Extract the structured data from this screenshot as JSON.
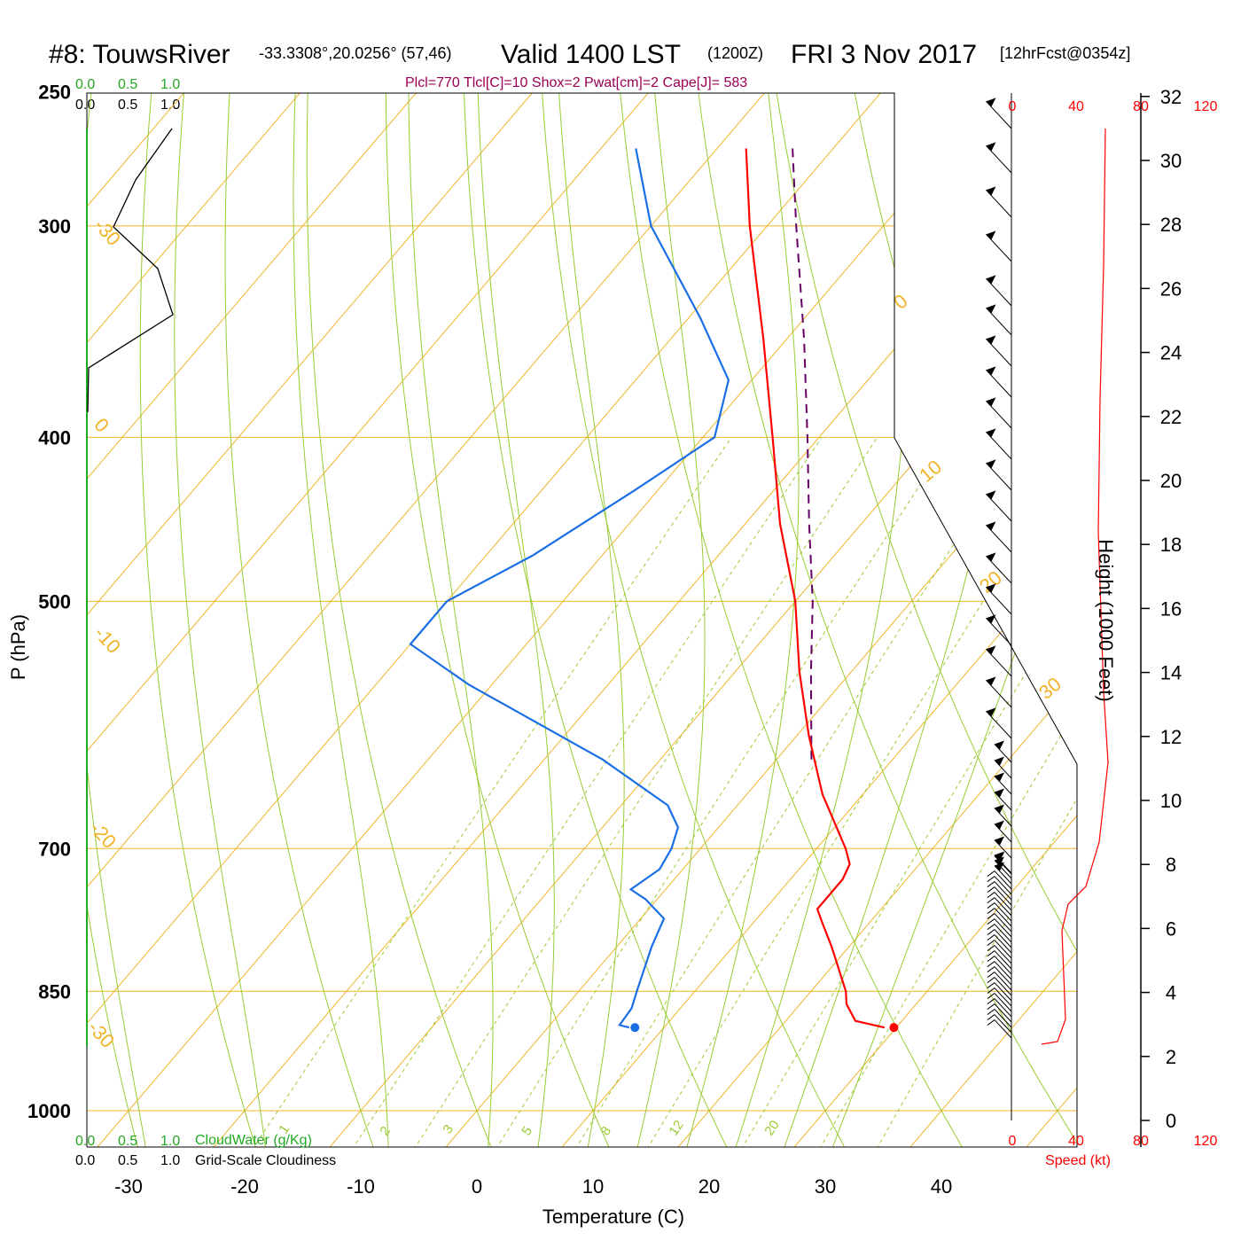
{
  "title": {
    "station": "#8: TouwsRiver",
    "coords": "-33.3308°,20.0256° (57,46)",
    "valid": "Valid 1400 LST",
    "zulu": "(1200Z)",
    "date": "FRI 3 Nov 2017",
    "forecast": "[12hrFcst@0354z]"
  },
  "params_line": "Plcl=770 Tlcl[C]=10 Shox=2 Pwat[cm]=2 Cape[J]= 583",
  "cloud_scale_top": {
    "green": [
      "0.0",
      "0.5",
      "1.0"
    ],
    "black": [
      "0.0",
      "0.5",
      "1.0"
    ]
  },
  "cloud_scale_bottom": {
    "green": [
      "0.0",
      "0.5",
      "1.0"
    ],
    "green_label": "CloudWater (g/Kg)",
    "black": [
      "0.0",
      "0.5",
      "1.0"
    ],
    "black_label": "Grid-Scale Cloudiness"
  },
  "speed_scale": {
    "ticks": [
      "0",
      "40",
      "80",
      "120"
    ],
    "label": "Speed (kt)"
  },
  "colors": {
    "isotherm": "#f0b429",
    "dry_adiabat": "#99cc33",
    "mixing_ratio": "#99cc33",
    "temperature": "#ff0000",
    "dewpoint": "#1a6ee6",
    "parcel": "#660066",
    "cloud_water": "#22aa22",
    "speed": "#ff0000"
  },
  "chart_data": {
    "type": "skew-t log-p",
    "xlabel": "Temperature (C)",
    "ylabel": "P (hPa)",
    "height_label": "Height (1000 Feet)",
    "x_ticks": [
      -30,
      -20,
      -10,
      0,
      10,
      20,
      30,
      40
    ],
    "p_ticks": [
      250,
      300,
      400,
      500,
      700,
      850,
      1000
    ],
    "height_ticks": [
      0,
      2,
      4,
      6,
      8,
      10,
      12,
      14,
      16,
      18,
      20,
      22,
      24,
      26,
      28,
      30,
      32
    ],
    "isotherm_labels": [
      "-30",
      "-20",
      "-10",
      "0",
      "10",
      "20",
      "30",
      "0",
      "10",
      "20",
      "30"
    ],
    "mixing_ratio_labels": [
      "1",
      "2",
      "3",
      "5",
      "8",
      "12",
      "20"
    ],
    "temperature_profile": [
      {
        "p": 893,
        "t": 29.0
      },
      {
        "p": 885,
        "t": 26.0
      },
      {
        "p": 865,
        "t": 24.0
      },
      {
        "p": 850,
        "t": 23.0
      },
      {
        "p": 800,
        "t": 18.5
      },
      {
        "p": 775,
        "t": 16.0
      },
      {
        "p": 760,
        "t": 14.5
      },
      {
        "p": 750,
        "t": 14.5
      },
      {
        "p": 730,
        "t": 14.5
      },
      {
        "p": 715,
        "t": 14.0
      },
      {
        "p": 700,
        "t": 12.5
      },
      {
        "p": 650,
        "t": 6.5
      },
      {
        "p": 600,
        "t": 1.0
      },
      {
        "p": 550,
        "t": -4.5
      },
      {
        "p": 500,
        "t": -10.0
      },
      {
        "p": 450,
        "t": -17.0
      },
      {
        "p": 400,
        "t": -24.0
      },
      {
        "p": 350,
        "t": -32.0
      },
      {
        "p": 300,
        "t": -41.5
      },
      {
        "p": 270,
        "t": -47.5
      }
    ],
    "dewpoint_profile": [
      {
        "p": 893,
        "t": 7.0
      },
      {
        "p": 890,
        "t": 6.0
      },
      {
        "p": 870,
        "t": 5.8
      },
      {
        "p": 850,
        "t": 5.0
      },
      {
        "p": 800,
        "t": 3.0
      },
      {
        "p": 770,
        "t": 2.0
      },
      {
        "p": 750,
        "t": -1.0
      },
      {
        "p": 740,
        "t": -3.0
      },
      {
        "p": 720,
        "t": -2.0
      },
      {
        "p": 700,
        "t": -2.5
      },
      {
        "p": 680,
        "t": -3.5
      },
      {
        "p": 660,
        "t": -6.0
      },
      {
        "p": 620,
        "t": -15.0
      },
      {
        "p": 560,
        "t": -32.0
      },
      {
        "p": 530,
        "t": -40.0
      },
      {
        "p": 500,
        "t": -40.0
      },
      {
        "p": 470,
        "t": -36.0
      },
      {
        "p": 430,
        "t": -32.0
      },
      {
        "p": 400,
        "t": -29.0
      },
      {
        "p": 370,
        "t": -32.0
      },
      {
        "p": 340,
        "t": -39.0
      },
      {
        "p": 300,
        "t": -50.0
      },
      {
        "p": 270,
        "t": -57.0
      }
    ],
    "surface_temperature": {
      "p": 893,
      "t": 29.8
    },
    "surface_dewpoint": {
      "p": 893,
      "t": 7.5
    },
    "parcel_profile": [
      {
        "p": 620,
        "t": 3.0
      },
      {
        "p": 550,
        "t": -3.5
      },
      {
        "p": 500,
        "t": -8.5
      },
      {
        "p": 450,
        "t": -14.5
      },
      {
        "p": 400,
        "t": -21.0
      },
      {
        "p": 350,
        "t": -28.5
      },
      {
        "p": 300,
        "t": -37.5
      },
      {
        "p": 270,
        "t": -43.5
      }
    ]
  }
}
